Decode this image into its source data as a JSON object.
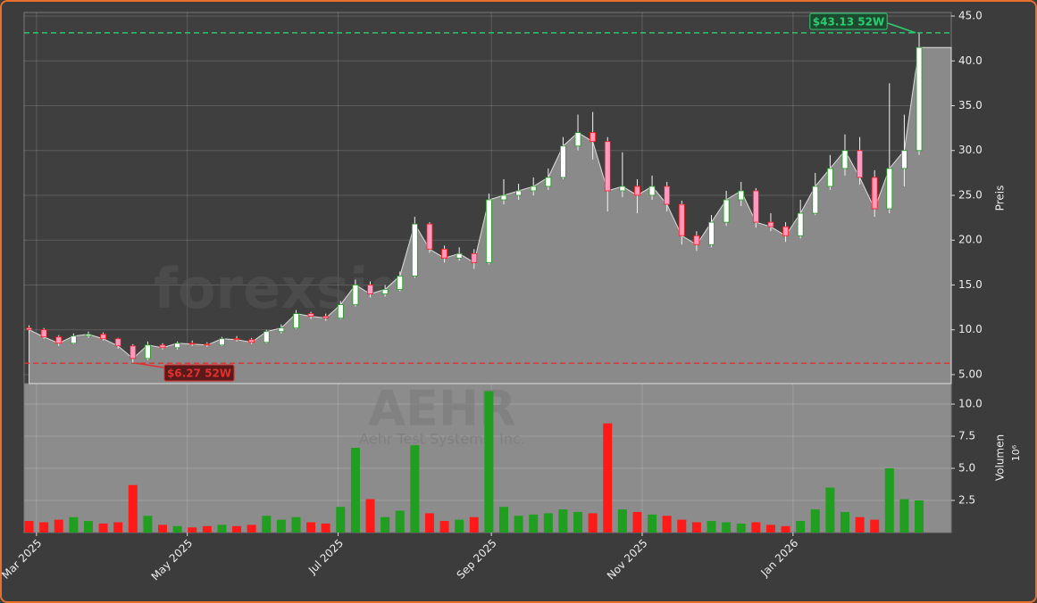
{
  "chart_data": {
    "type": "candlestick",
    "x": [
      "2025-02-26",
      "2025-03-04",
      "2025-03-10",
      "2025-03-16",
      "2025-03-22",
      "2025-03-28",
      "2025-04-03",
      "2025-04-09",
      "2025-04-15",
      "2025-04-21",
      "2025-04-27",
      "2025-05-03",
      "2025-05-09",
      "2025-05-15",
      "2025-05-21",
      "2025-05-27",
      "2025-06-02",
      "2025-06-08",
      "2025-06-14",
      "2025-06-20",
      "2025-06-26",
      "2025-07-02",
      "2025-07-08",
      "2025-07-14",
      "2025-07-20",
      "2025-07-26",
      "2025-08-01",
      "2025-08-07",
      "2025-08-13",
      "2025-08-19",
      "2025-08-25",
      "2025-08-31",
      "2025-09-06",
      "2025-09-12",
      "2025-09-18",
      "2025-09-24",
      "2025-09-30",
      "2025-10-06",
      "2025-10-12",
      "2025-10-18",
      "2025-10-24",
      "2025-10-30",
      "2025-11-05",
      "2025-11-11",
      "2025-11-17",
      "2025-11-23",
      "2025-11-29",
      "2025-12-05",
      "2025-12-11",
      "2025-12-17",
      "2025-12-23",
      "2025-12-29",
      "2026-01-04",
      "2026-01-10",
      "2026-01-16",
      "2026-01-22",
      "2026-01-28",
      "2026-02-03",
      "2026-02-09",
      "2026-02-15",
      "2026-02-21"
    ],
    "open": [
      10.2,
      10.0,
      9.2,
      8.5,
      9.3,
      9.5,
      9.0,
      8.2,
      6.8,
      8.3,
      8.0,
      8.5,
      8.4,
      8.3,
      9.0,
      8.9,
      8.6,
      9.8,
      10.2,
      11.8,
      11.5,
      11.3,
      12.8,
      15.0,
      14.0,
      14.5,
      16.0,
      21.8,
      19.0,
      18.0,
      18.5,
      17.5,
      24.5,
      25.0,
      25.5,
      26.0,
      27.0,
      30.5,
      32.0,
      31.0,
      25.5,
      26.0,
      25.0,
      26.0,
      24.0,
      20.5,
      19.5,
      22.0,
      24.5,
      25.5,
      22.0,
      21.5,
      20.5,
      23.0,
      26.0,
      28.0,
      30.0,
      27.0,
      23.5,
      28.0,
      30.0
    ],
    "high": [
      10.5,
      10.2,
      9.4,
      9.6,
      9.8,
      9.7,
      9.1,
      8.4,
      8.7,
      8.5,
      8.7,
      8.8,
      8.6,
      9.2,
      9.3,
      9.1,
      10.0,
      10.6,
      12.2,
      12.0,
      11.8,
      13.2,
      15.6,
      15.4,
      15.0,
      16.5,
      22.6,
      22.0,
      19.4,
      19.2,
      19.0,
      25.2,
      26.8,
      26.3,
      27.0,
      28.0,
      31.5,
      34.0,
      34.3,
      31.5,
      29.8,
      26.8,
      27.2,
      26.5,
      24.4,
      21.0,
      22.8,
      25.5,
      26.5,
      25.8,
      23.0,
      22.0,
      24.5,
      27.5,
      29.5,
      31.8,
      31.5,
      27.8,
      37.5,
      34.0,
      43.13
    ],
    "low": [
      9.7,
      9.0,
      8.2,
      8.4,
      9.1,
      8.8,
      7.9,
      6.27,
      6.6,
      7.8,
      7.8,
      8.2,
      8.1,
      8.2,
      8.7,
      8.4,
      8.5,
      9.6,
      10.1,
      11.2,
      11.0,
      11.2,
      12.6,
      13.6,
      13.7,
      14.3,
      15.8,
      18.6,
      17.5,
      17.7,
      16.8,
      17.3,
      24.0,
      24.5,
      25.0,
      25.6,
      26.8,
      30.0,
      29.0,
      23.2,
      24.8,
      23.0,
      24.5,
      23.2,
      19.5,
      18.8,
      19.2,
      21.6,
      23.8,
      21.4,
      21.0,
      19.8,
      20.2,
      22.8,
      25.6,
      27.2,
      26.2,
      22.6,
      23.0,
      26.0,
      29.5
    ],
    "close": [
      10.0,
      9.2,
      8.5,
      9.3,
      9.5,
      9.0,
      8.2,
      6.8,
      8.3,
      8.0,
      8.5,
      8.4,
      8.3,
      9.0,
      8.9,
      8.6,
      9.8,
      10.2,
      11.8,
      11.5,
      11.3,
      12.8,
      15.0,
      14.0,
      14.5,
      16.0,
      21.8,
      19.0,
      18.0,
      18.5,
      17.5,
      24.5,
      25.0,
      25.5,
      26.0,
      27.0,
      30.5,
      32.0,
      31.0,
      25.5,
      26.0,
      25.0,
      26.0,
      24.0,
      20.5,
      19.5,
      22.0,
      24.5,
      25.5,
      22.0,
      21.5,
      20.5,
      23.0,
      26.0,
      28.0,
      30.0,
      27.0,
      23.5,
      28.0,
      30.0,
      41.5
    ],
    "up_color": "#1f9e1f",
    "down_color": "#ff1a1a",
    "area_color": "#8a8a8a",
    "xlim": [
      "2025-02-24",
      "2026-03-06"
    ],
    "xticks": [
      {
        "value": "2025-03-01",
        "label": "Mar 2025"
      },
      {
        "value": "2025-05-01",
        "label": "May 2025"
      },
      {
        "value": "2025-07-01",
        "label": "Jul 2025"
      },
      {
        "value": "2025-09-01",
        "label": "Sep 2025"
      },
      {
        "value": "2025-11-01",
        "label": "Nov 2025"
      },
      {
        "value": "2026-01-01",
        "label": "Jan 2026"
      }
    ],
    "ylim": [
      4.0,
      45.4
    ],
    "yticks": [
      {
        "value": 5,
        "label": "5.00"
      },
      {
        "value": 10,
        "label": "10.0"
      },
      {
        "value": 15,
        "label": "15.0"
      },
      {
        "value": 20,
        "label": "20.0"
      },
      {
        "value": 25,
        "label": "25.0"
      },
      {
        "value": 30,
        "label": "30.0"
      },
      {
        "value": 35,
        "label": "35.0"
      },
      {
        "value": 40,
        "label": "40.0"
      },
      {
        "value": 45,
        "label": "45.0"
      }
    ],
    "y_label": "Preis",
    "grid": true,
    "reference_lines": [
      {
        "value": 43.13,
        "label": "$43.13 52W",
        "color": "#2ecc71"
      },
      {
        "value": 6.27,
        "label": "$6.27 52W",
        "color": "#e03030"
      }
    ],
    "watermark": "forexsignale.trade",
    "symbol": "AEHR",
    "company": "Aehr Test Systems, Inc.",
    "volume": {
      "values": [
        0.9,
        0.8,
        1.0,
        1.2,
        0.9,
        0.7,
        0.8,
        3.7,
        1.3,
        0.6,
        0.5,
        0.4,
        0.5,
        0.6,
        0.5,
        0.6,
        1.3,
        1.0,
        1.2,
        0.8,
        0.7,
        2.0,
        6.6,
        2.6,
        1.2,
        1.7,
        6.8,
        1.5,
        0.9,
        1.0,
        1.2,
        11.0,
        2.0,
        1.3,
        1.4,
        1.5,
        1.8,
        1.6,
        1.5,
        8.5,
        1.8,
        1.6,
        1.4,
        1.3,
        1.0,
        0.8,
        0.9,
        0.8,
        0.7,
        0.8,
        0.6,
        0.5,
        0.9,
        1.8,
        3.5,
        1.6,
        1.2,
        1.0,
        5.0,
        2.6,
        2.5
      ],
      "ylim": [
        0,
        11.6
      ],
      "yticks": [
        2.5,
        {
          "value": 5,
          "label": "5.0"
        },
        7.5,
        {
          "value": 10,
          "label": "10.0"
        }
      ],
      "y_label": "Volumen",
      "multiplier": "10⁶"
    }
  }
}
